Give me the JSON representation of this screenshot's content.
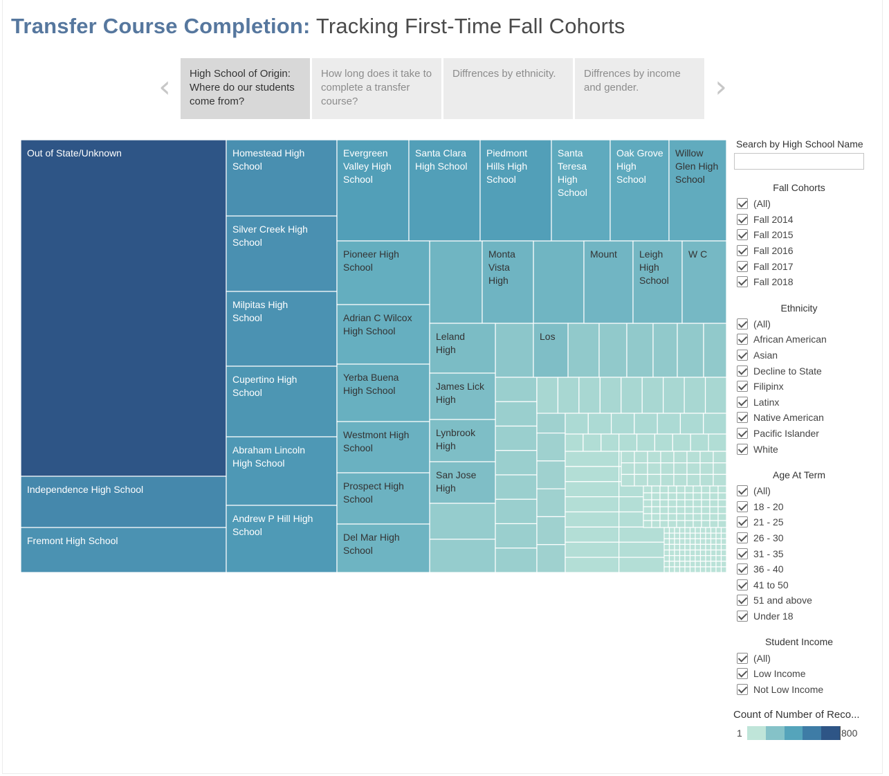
{
  "header": {
    "title_bold": "Transfer Course Completion:",
    "title_rest": " Tracking First-Time Fall Cohorts"
  },
  "story": {
    "prev_icon": "chevron-left-icon",
    "next_icon": "chevron-right-icon",
    "points": [
      {
        "label": "High School of Origin: Where do our students come from?",
        "active": true
      },
      {
        "label": "How long does it take to complete a transfer course?",
        "active": false
      },
      {
        "label": "Diffrences by ethnicity.",
        "active": false
      },
      {
        "label": "Diffrences by income and gender.",
        "active": false
      }
    ]
  },
  "chart_data": {
    "type": "treemap",
    "measure": "Count of Number of Records",
    "color_range": [
      "#bfe5d9",
      "#2e5586"
    ],
    "items": [
      {
        "name": "Out of State/Unknown",
        "value": 800
      },
      {
        "name": "Independence High School",
        "value": 117
      },
      {
        "name": "Fremont High School",
        "value": 104
      },
      {
        "name": "Homestead High School",
        "value": 108
      },
      {
        "name": "Silver Creek High School",
        "value": 107
      },
      {
        "name": "Milpitas High School",
        "value": 104
      },
      {
        "name": "Cupertino High School",
        "value": 100
      },
      {
        "name": "Abraham Lincoln High School",
        "value": 97
      },
      {
        "name": "Andrew P Hill High School",
        "value": 94
      },
      {
        "name": "Evergreen Valley High School",
        "value": 88
      },
      {
        "name": "Santa Clara High School",
        "value": 88
      },
      {
        "name": "Piedmont Hills High School",
        "value": 88
      },
      {
        "name": "Santa Teresa High School",
        "value": 72
      },
      {
        "name": "Oak Grove High School",
        "value": 72
      },
      {
        "name": "Willow Glen High School",
        "value": 70
      },
      {
        "name": "Pioneer High School",
        "value": 66
      },
      {
        "name": "Adrian C Wilcox High School",
        "value": 64
      },
      {
        "name": "Yerba Buena High School",
        "value": 62
      },
      {
        "name": "Westmont High School",
        "value": 60
      },
      {
        "name": "Prospect High School",
        "value": 58
      },
      {
        "name": "Del Mar High School",
        "value": 56
      },
      {
        "name": "Monta Vista High",
        "value": 55
      },
      {
        "name": "Mount",
        "value": 53
      },
      {
        "name": "Leigh High School",
        "value": 50
      },
      {
        "name": "W C",
        "value": 48
      },
      {
        "name": "Leland High",
        "value": 42
      },
      {
        "name": "Los",
        "value": 38
      },
      {
        "name": "James Lick High",
        "value": 40
      },
      {
        "name": "Lynbrook High",
        "value": 39
      },
      {
        "name": "San Jose High",
        "value": 38
      }
    ]
  },
  "filters": {
    "search": {
      "label": "Search by High School Name",
      "value": ""
    },
    "groups": [
      {
        "title": "Fall Cohorts",
        "options": [
          "(All)",
          "Fall 2014",
          "Fall 2015",
          "Fall 2016",
          "Fall 2017",
          "Fall 2018"
        ]
      },
      {
        "title": "Ethnicity",
        "options": [
          "(All)",
          "African American",
          "Asian",
          "Decline to State",
          "Filipinx",
          "Latinx",
          "Native American",
          "Pacific Islander",
          "White"
        ]
      },
      {
        "title": "Age At Term",
        "options": [
          "(All)",
          "18 - 20",
          "21 - 25",
          "26 - 30",
          "31 - 35",
          "36 - 40",
          "41 to 50",
          "51 and above",
          "Under 18"
        ]
      },
      {
        "title": "Student Income",
        "options": [
          "(All)",
          "Low Income",
          "Not Low Income"
        ]
      }
    ]
  },
  "legend": {
    "title": "Count of Number of Reco...",
    "min": "1",
    "max": "800",
    "colors": [
      "#bfe5d9",
      "#85c2c8",
      "#55a4bb",
      "#3e7ca6",
      "#2e5586"
    ]
  }
}
